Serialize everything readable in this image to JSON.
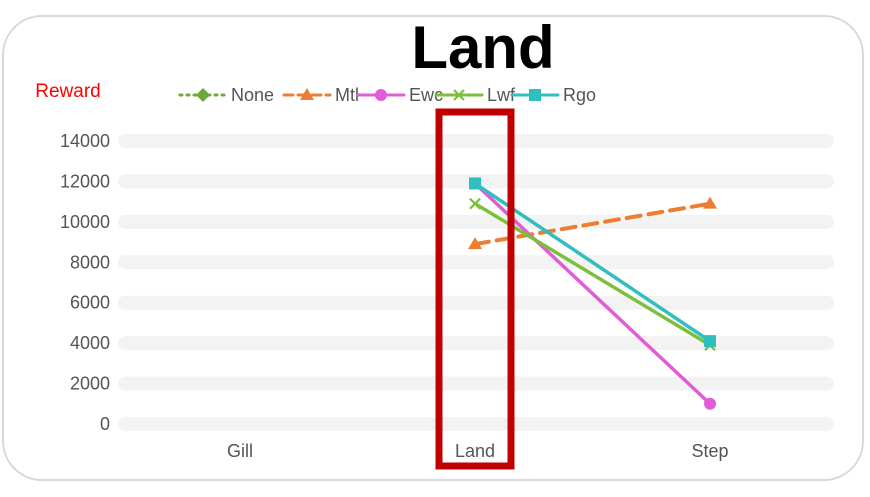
{
  "chart_data": {
    "type": "line",
    "title": "Land",
    "ylabel": "Reward",
    "xlabel": "",
    "categories": [
      "Gill",
      "Land",
      "Step"
    ],
    "ylim": [
      0,
      14000
    ],
    "yticks": [
      0,
      2000,
      4000,
      6000,
      8000,
      10000,
      12000,
      14000
    ],
    "grid": true,
    "legend_position": "top",
    "highlight_category": "Land",
    "highlight_color": "#c00000",
    "series": [
      {
        "name": "None",
        "color": "#6aaa3a",
        "dash": "dotted",
        "marker": "diamond",
        "values": [
          null,
          null,
          null
        ]
      },
      {
        "name": "Mtl",
        "color": "#ed7d31",
        "dash": "dashed",
        "marker": "triangle",
        "values": [
          null,
          8900,
          10900
        ]
      },
      {
        "name": "Ewc",
        "color": "#e05cd8",
        "dash": "solid",
        "marker": "circle",
        "values": [
          null,
          11900,
          1000
        ]
      },
      {
        "name": "Lwf",
        "color": "#7cbf3a",
        "dash": "solid",
        "marker": "x",
        "values": [
          null,
          10900,
          3900
        ]
      },
      {
        "name": "Rgo",
        "color": "#2fbfbf",
        "dash": "solid",
        "marker": "square",
        "values": [
          null,
          11900,
          4100
        ]
      }
    ]
  }
}
